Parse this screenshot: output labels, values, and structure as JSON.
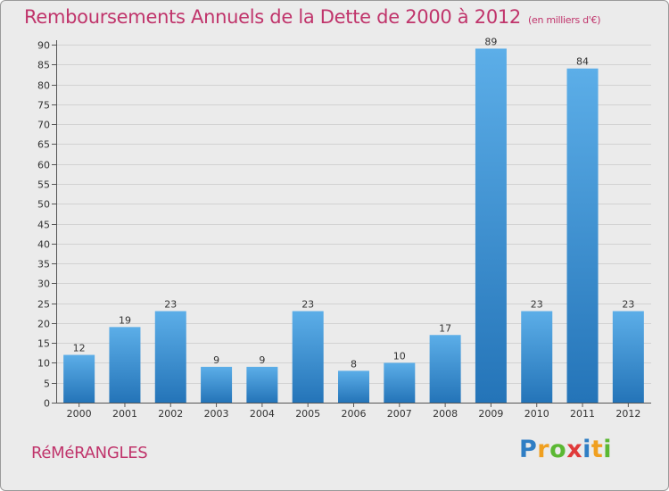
{
  "title": "Remboursements Annuels de la Dette de 2000 à 2012",
  "subtitle": "(en milliers d'€)",
  "commune": "RéMéRANGLES",
  "logo": {
    "text": "Proxiti",
    "letters": [
      {
        "char": "P",
        "color": "#2f7ec4"
      },
      {
        "char": "r",
        "color": "#f0a020"
      },
      {
        "char": "o",
        "color": "#5bb833"
      },
      {
        "char": "x",
        "color": "#e03a3a"
      },
      {
        "char": "i",
        "color": "#2f7ec4"
      },
      {
        "char": "t",
        "color": "#f0a020"
      },
      {
        "char": "i",
        "color": "#5bb833"
      }
    ]
  },
  "chart_data": {
    "type": "bar",
    "title": "Remboursements Annuels de la Dette de 2000 à 2012",
    "subtitle": "(en milliers d'€)",
    "categories": [
      "2000",
      "2001",
      "2002",
      "2003",
      "2004",
      "2005",
      "2006",
      "2007",
      "2008",
      "2009",
      "2010",
      "2011",
      "2012"
    ],
    "values": [
      12,
      19,
      23,
      9,
      9,
      23,
      8,
      10,
      17,
      89,
      23,
      84,
      23
    ],
    "ylim": [
      0,
      90
    ],
    "yticks": [
      0,
      5,
      10,
      15,
      20,
      25,
      30,
      35,
      40,
      45,
      50,
      55,
      60,
      65,
      70,
      75,
      80,
      85,
      90
    ],
    "grid": true,
    "bar_color": "#3a8fd6",
    "title_color": "#c0346b"
  }
}
